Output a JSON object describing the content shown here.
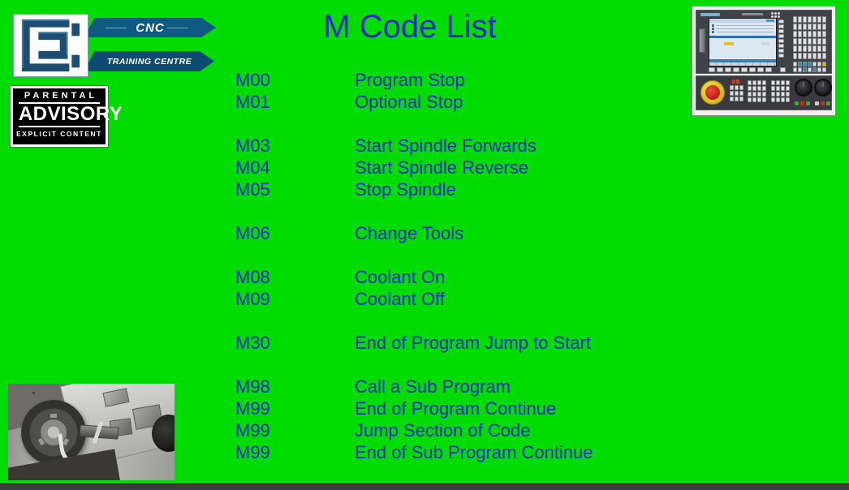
{
  "slide": {
    "title": "M Code List"
  },
  "logo": {
    "banner_top": "CNC",
    "banner_bottom": "TRAINING CENTRE"
  },
  "advisory": {
    "line1": "PARENTAL",
    "line2": "ADVISORY",
    "line3": "EXPLICIT CONTENT"
  },
  "mcode_groups": [
    [
      {
        "code": "M00",
        "desc": "Program Stop"
      },
      {
        "code": "M01",
        "desc": "Optional Stop"
      }
    ],
    [
      {
        "code": "M03",
        "desc": "Start Spindle Forwards"
      },
      {
        "code": "M04",
        "desc": "Start Spindle Reverse"
      },
      {
        "code": "M05",
        "desc": "Stop Spindle"
      }
    ],
    [
      {
        "code": "M06",
        "desc": "Change Tools"
      }
    ],
    [
      {
        "code": "M08",
        "desc": "Coolant On"
      },
      {
        "code": "M09",
        "desc": "Coolant Off"
      }
    ],
    [
      {
        "code": "M30",
        "desc": "End of Program Jump to Start"
      }
    ],
    [
      {
        "code": "M98",
        "desc": "Call a Sub Program"
      },
      {
        "code": "M99",
        "desc": "End of Program Continue"
      },
      {
        "code": "M99",
        "desc": "Jump Section of Code"
      },
      {
        "code": "M99",
        "desc": "End of Sub Program Continue"
      }
    ]
  ],
  "images": {
    "control_panel": "siemens-cnc-control-panel-photo",
    "lathe": "cnc-lathe-chuck-turret-photo"
  },
  "colors": {
    "background": "#00db00",
    "text_blue": "#2629c4",
    "ribbon_blue": "#0f5a80",
    "ribbon_blue_dark": "#0d4c70",
    "logo_blue": "#1c4d73",
    "bottom_bar": "#3c3c3c",
    "estop_red": "#b81810",
    "estop_yellow": "#d8b81a"
  }
}
